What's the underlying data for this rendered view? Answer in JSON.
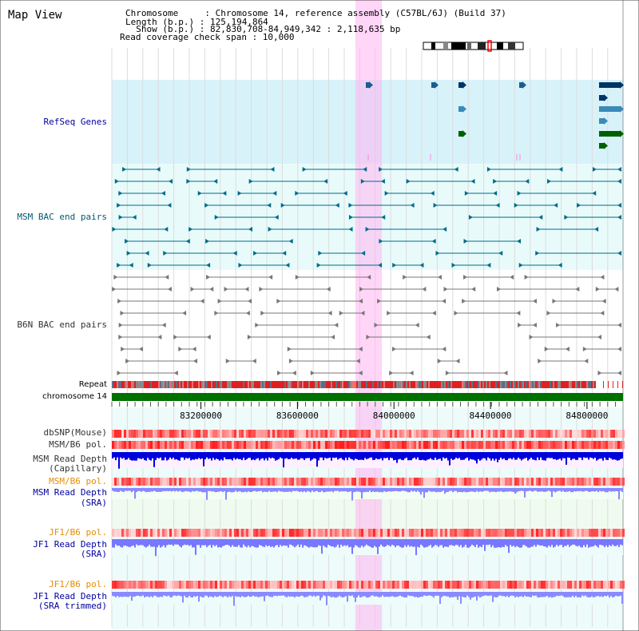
{
  "title": "Map View",
  "info": {
    "line1": "Chromosome     : Chromosome 14, reference assembly (C57BL/6J) (Build 37)",
    "line2": "Length (b.p.) : 125,194,864",
    "line3": "  Show (b.p.) : 82,830,708-84,949,342 : 2,118,635 bp",
    "line4": "Read coverage check span : 10,000"
  },
  "tracks": {
    "refseq": "RefSeq Genes",
    "msm_bac": "MSM BAC end pairs",
    "b6n_bac": "B6N BAC end pairs",
    "repeat": "Repeat",
    "chromosome": "chromosome 14",
    "dbsnp": "dbSNP(Mouse)",
    "msm_b6_pol_1": "MSM/B6 pol.",
    "msm_depth_cap_1": "MSM Read Depth",
    "msm_depth_cap_2": "(Capillary)",
    "msm_b6_pol_2": "MSM/B6 pol.",
    "msm_depth_sra_1": "MSM Read Depth",
    "msm_depth_sra_2": "(SRA)",
    "jf1_b6_pol_1": "JF1/B6 pol.",
    "jf1_depth_sra_1": "JF1 Read Depth",
    "jf1_depth_sra_2": "(SRA)",
    "jf1_b6_pol_2": "JF1/B6 pol.",
    "jf1_depth_trim_1": "JF1 Read Depth",
    "jf1_depth_trim_2": "(SRA trimmed)"
  },
  "axis": {
    "ticks": [
      {
        "pos": 83200000,
        "label": "83200000"
      },
      {
        "pos": 83600000,
        "label": "83600000"
      },
      {
        "pos": 84000000,
        "label": "84000000"
      },
      {
        "pos": 84400000,
        "label": "84400000"
      },
      {
        "pos": 84800000,
        "label": "84800000"
      }
    ],
    "range": [
      82830708,
      84949342
    ]
  },
  "highlight_range": [
    83840000,
    83950000
  ],
  "colors": {
    "label_blue": "#0000a0",
    "label_teal": "#005a72",
    "label_gray": "#333333",
    "label_orange": "#e88c00",
    "highlight": "#ffb4f0",
    "refseq_bg": "#d8f2fa",
    "bac_bg": "#e8fbfa",
    "chrom_green": "#007000",
    "depth_blue": "#0000dd",
    "depth_soft": "#7777ff"
  }
}
